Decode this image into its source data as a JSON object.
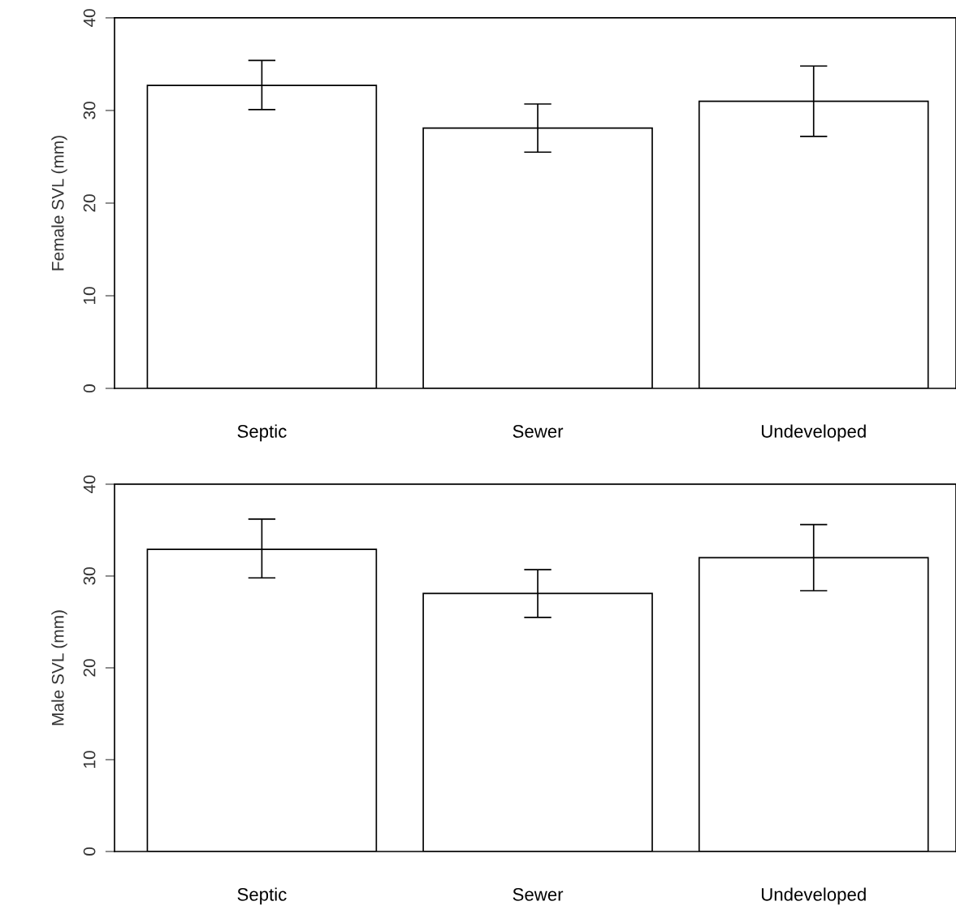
{
  "chart_data": [
    {
      "type": "bar",
      "ylabel": "Female SVL (mm)",
      "categories": [
        "Septic",
        "Sewer",
        "Undeveloped"
      ],
      "values": [
        32.7,
        28.1,
        31.0
      ],
      "color": "#ffffff",
      "errors": [
        [
          30.1,
          35.4
        ],
        [
          25.5,
          30.7
        ],
        [
          27.2,
          34.8
        ]
      ],
      "ylim": [
        0,
        40
      ],
      "yticks": [
        0,
        10,
        20,
        30,
        40
      ],
      "grid": false,
      "legend": false
    },
    {
      "type": "bar",
      "ylabel": "Male SVL (mm)",
      "categories": [
        "Septic",
        "Sewer",
        "Undeveloped"
      ],
      "values": [
        32.9,
        28.1,
        32.0
      ],
      "color": "#ffffff",
      "errors": [
        [
          29.8,
          36.2
        ],
        [
          25.5,
          30.7
        ],
        [
          28.4,
          35.6
        ]
      ],
      "ylim": [
        0,
        40
      ],
      "yticks": [
        0,
        10,
        20,
        30,
        40
      ],
      "grid": false,
      "legend": false
    }
  ]
}
